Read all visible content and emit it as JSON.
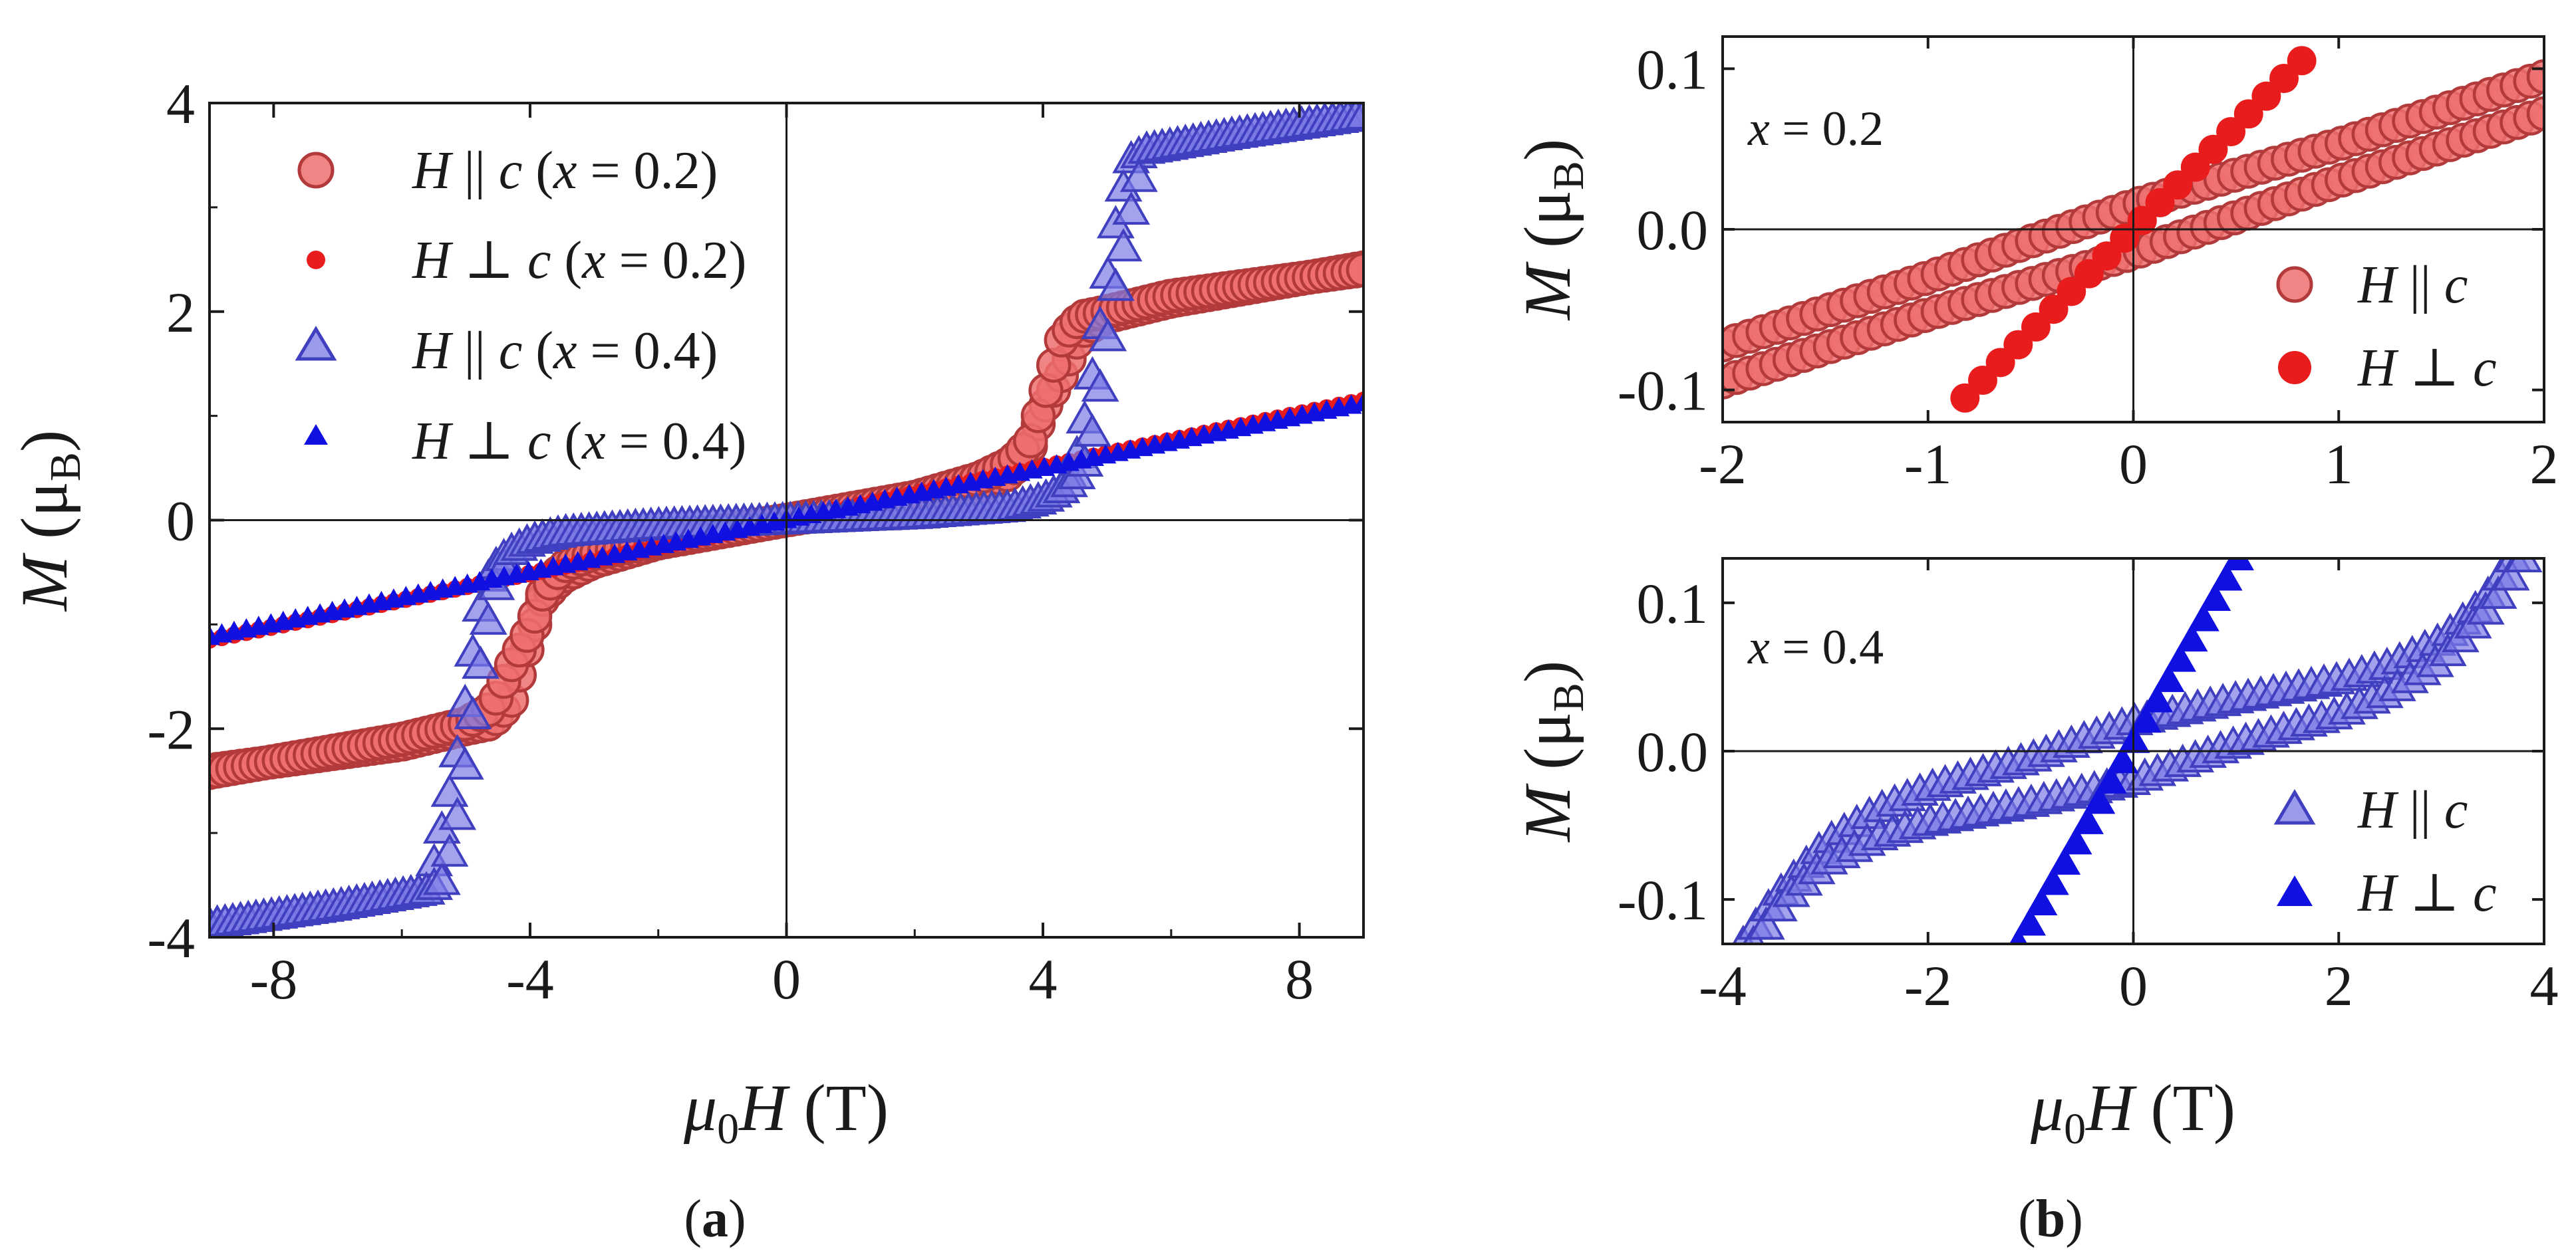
{
  "chart_data": [
    {
      "id": "a",
      "type": "scatter",
      "panel_label": "(a)",
      "xlabel": "μ0H (T)",
      "ylabel": "M (μB)",
      "xlim": [
        -9,
        9
      ],
      "ylim": [
        -4,
        4
      ],
      "xticks": [
        -8,
        -4,
        0,
        4,
        8
      ],
      "yticks": [
        -4,
        -2,
        0,
        2,
        4
      ],
      "x_tick_labels": [
        "-8",
        "-4",
        "0",
        "4",
        "8"
      ],
      "y_tick_labels": [
        "-4",
        "-2",
        "0",
        "2",
        "4"
      ],
      "legend_position": "top-left",
      "series": [
        {
          "name": "H || c (x = 0.2)",
          "marker": "circle-large",
          "color": "#ee6e6e",
          "edge": "#b23a3a",
          "branch_up_x": [
            -9,
            -6,
            -5,
            -4.6,
            -4.3,
            -4.0,
            -3.8,
            -3.5,
            -3.0,
            -2,
            0,
            2,
            3.0,
            3.5,
            3.8,
            4.0,
            4.3,
            4.6,
            5,
            6,
            9
          ],
          "branch_up_y": [
            -2.4,
            -2.15,
            -2.0,
            -1.95,
            -1.75,
            -1.15,
            -0.75,
            -0.55,
            -0.4,
            -0.22,
            0.0,
            0.2,
            0.32,
            0.45,
            0.7,
            1.05,
            1.4,
            1.8,
            1.95,
            2.1,
            2.42
          ],
          "branch_down_x": [
            -9,
            -6,
            -5,
            -4.6,
            -4.3,
            -4.0,
            -3.8,
            -3.5,
            -3.0,
            -2,
            0,
            2,
            3.0,
            3.5,
            3.8,
            4.0,
            4.3,
            4.6,
            5,
            6,
            9
          ],
          "branch_down_y": [
            -2.42,
            -2.1,
            -1.95,
            -1.8,
            -1.4,
            -1.05,
            -0.7,
            -0.45,
            -0.32,
            -0.2,
            0.0,
            0.22,
            0.4,
            0.55,
            0.75,
            1.15,
            1.75,
            1.95,
            2.0,
            2.15,
            2.4
          ]
        },
        {
          "name": "H ⊥ c (x = 0.2)",
          "marker": "circle-small",
          "color": "#e81c1c",
          "x": [
            -9,
            9
          ],
          "y": [
            -1.15,
            1.15
          ]
        },
        {
          "name": "H || c (x = 0.4)",
          "marker": "triangle-large",
          "color": "#7a7ae6",
          "edge": "#3f3fbf",
          "branch_up_x": [
            -9,
            -7,
            -5.6,
            -5.35,
            -5.15,
            -5.0,
            -4.85,
            -4.7,
            -4.5,
            -4.3,
            -4.0,
            -3.5,
            -2,
            0,
            2,
            3.5,
            4.0,
            4.3,
            4.5,
            4.7,
            4.85,
            5.0,
            5.15,
            5.35,
            5.6,
            7,
            9
          ],
          "branch_up_y": [
            -3.88,
            -3.7,
            -3.55,
            -2.9,
            -2.3,
            -1.7,
            -1.1,
            -0.6,
            -0.4,
            -0.3,
            -0.2,
            -0.12,
            -0.05,
            0.0,
            0.05,
            0.12,
            0.2,
            0.3,
            0.55,
            1.1,
            1.7,
            2.3,
            2.9,
            3.45,
            3.55,
            3.7,
            3.88
          ],
          "branch_down_x": [
            -9,
            -7,
            -5.6,
            -5.35,
            -5.15,
            -5.0,
            -4.85,
            -4.7,
            -4.5,
            -4.3,
            -4.0,
            -3.5,
            -2,
            0,
            2,
            3.5,
            4.0,
            4.3,
            4.5,
            4.7,
            4.85,
            5.0,
            5.15,
            5.35,
            5.6,
            7,
            9
          ],
          "branch_down_y": [
            -3.88,
            -3.7,
            -3.55,
            -3.45,
            -2.9,
            -2.3,
            -1.7,
            -1.1,
            -0.55,
            -0.3,
            -0.2,
            -0.12,
            -0.05,
            0.0,
            0.05,
            0.12,
            0.2,
            0.3,
            0.4,
            0.6,
            1.1,
            1.7,
            2.3,
            2.9,
            3.55,
            3.7,
            3.88
          ]
        },
        {
          "name": "H ⊥ c (x = 0.4)",
          "marker": "triangle-small",
          "color": "#1010e0",
          "x": [
            -9,
            9
          ],
          "y": [
            -1.12,
            1.12
          ]
        }
      ]
    },
    {
      "id": "b-top",
      "type": "scatter",
      "annotation": "x = 0.2",
      "ylabel": "M (μB)",
      "xlim": [
        -2,
        2
      ],
      "ylim": [
        -0.12,
        0.12
      ],
      "xticks": [
        -2,
        -1,
        0,
        1,
        2
      ],
      "yticks": [
        -0.1,
        0.0,
        0.1
      ],
      "x_tick_labels": [
        "-2",
        "-1",
        "0",
        "1",
        "2"
      ],
      "y_tick_labels": [
        "-0.1",
        "0.0",
        "0.1"
      ],
      "legend_position": "bottom-right",
      "series": [
        {
          "name": "H || c",
          "marker": "circle-large",
          "color": "#ee6e6e",
          "edge": "#b23a3a",
          "upper_x": [
            -2,
            -1,
            0,
            1,
            2
          ],
          "upper_y": [
            -0.072,
            -0.03,
            0.015,
            0.053,
            0.095
          ],
          "lower_x": [
            -2,
            -1,
            0,
            1,
            2
          ],
          "lower_y": [
            -0.095,
            -0.053,
            -0.015,
            0.03,
            0.072
          ]
        },
        {
          "name": "H ⊥ c",
          "marker": "circle-large-solid",
          "color": "#e81c1c",
          "x": [
            -0.82,
            0.82
          ],
          "y": [
            -0.105,
            0.105
          ]
        }
      ]
    },
    {
      "id": "b-bottom",
      "type": "scatter",
      "panel_label": "(b)",
      "annotation": "x = 0.4",
      "xlabel": "μ0H (T)",
      "ylabel": "M (μB)",
      "xlim": [
        -4,
        4
      ],
      "ylim": [
        -0.13,
        0.13
      ],
      "xticks": [
        -4,
        -2,
        0,
        2,
        4
      ],
      "yticks": [
        -0.1,
        0.0,
        0.1
      ],
      "x_tick_labels": [
        "-4",
        "-2",
        "0",
        "2",
        "4"
      ],
      "y_tick_labels": [
        "-0.1",
        "0.0",
        "0.1"
      ],
      "legend_position": "bottom-right",
      "series": [
        {
          "name": "H || c",
          "marker": "triangle-large",
          "color": "#7a7ae6",
          "edge": "#3f3fbf",
          "upper_x": [
            -3.8,
            -3.5,
            -3.0,
            -2.5,
            -2.0,
            -1.0,
            0,
            1.0,
            2.0,
            2.5,
            3.0,
            3.4,
            3.7
          ],
          "upper_y": [
            -0.13,
            -0.1,
            -0.062,
            -0.04,
            -0.025,
            -0.005,
            0.02,
            0.035,
            0.048,
            0.058,
            0.075,
            0.1,
            0.13
          ],
          "lower_x": [
            -3.7,
            -3.4,
            -3.0,
            -2.5,
            -2.0,
            -1.0,
            0,
            1.0,
            2.0,
            2.5,
            3.0,
            3.5,
            3.8
          ],
          "lower_y": [
            -0.13,
            -0.1,
            -0.075,
            -0.058,
            -0.048,
            -0.035,
            -0.02,
            0.005,
            0.025,
            0.04,
            0.062,
            0.1,
            0.13
          ]
        },
        {
          "name": "H ⊥ c",
          "marker": "triangle-large-solid",
          "color": "#1010e0",
          "x": [
            -1.12,
            1.02
          ],
          "y": [
            -0.13,
            0.13
          ]
        }
      ]
    }
  ]
}
